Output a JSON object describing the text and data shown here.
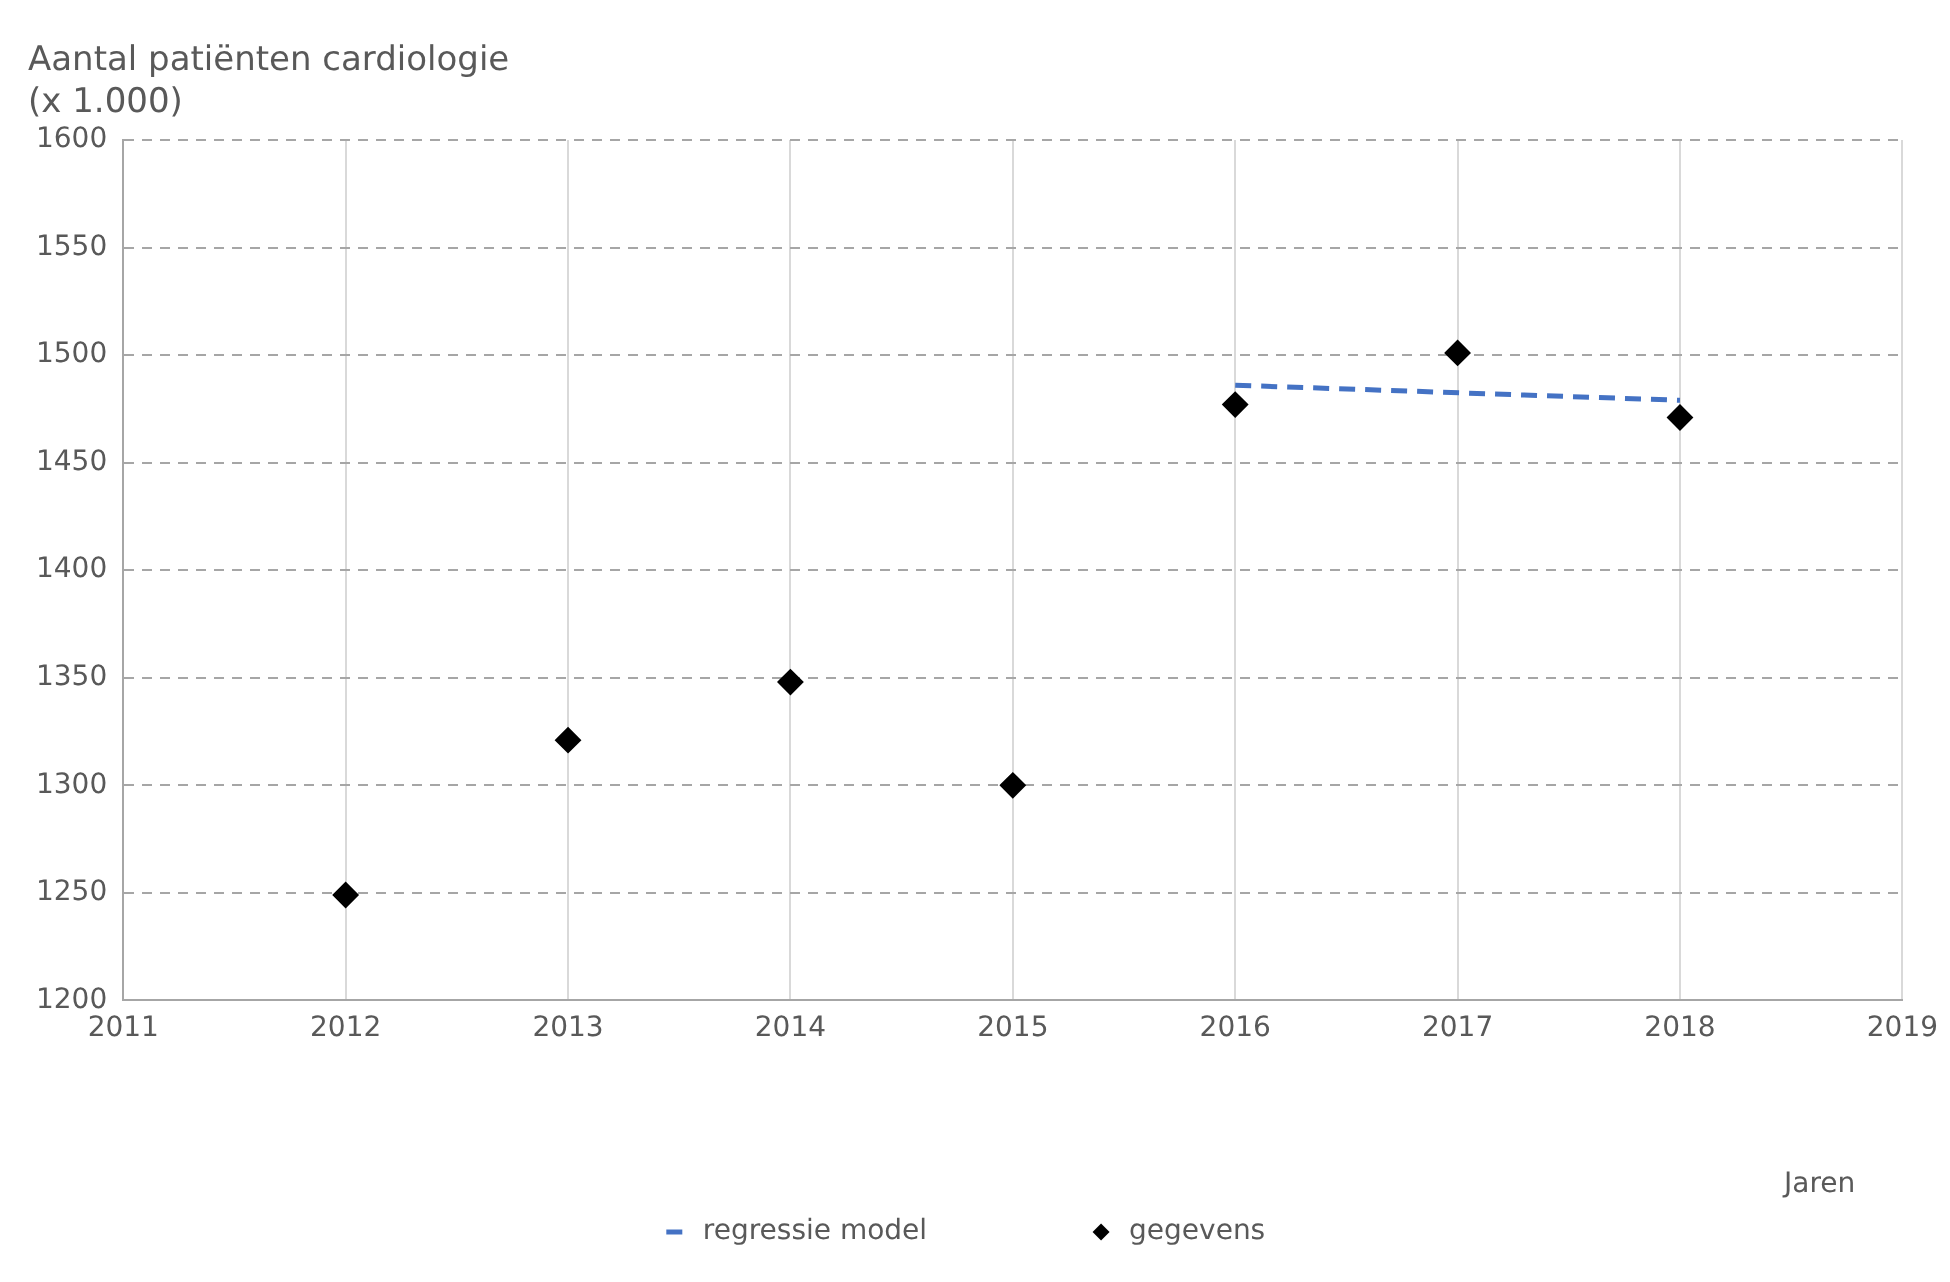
{
  "chart_data": {
    "type": "scatter",
    "ylabel": "Aantal patiënten cardiologie\n(x 1.000)",
    "xlabel": "Jaren",
    "series": [
      {
        "name": "regressie model",
        "type": "line",
        "line_style": "dashed",
        "marker": "none",
        "color": "#4472c4",
        "x": [
          2016,
          2018
        ],
        "values": [
          1486,
          1479
        ]
      },
      {
        "name": "gegevens",
        "type": "scatter",
        "marker": "diamond",
        "color": "#000000",
        "x": [
          2012,
          2013,
          2014,
          2015,
          2016,
          2017,
          2018
        ],
        "values": [
          1249,
          1321,
          1348,
          1300,
          1477,
          1501,
          1471
        ]
      }
    ],
    "xlim": [
      2011,
      2019
    ],
    "xticks": [
      2011,
      2012,
      2013,
      2014,
      2015,
      2016,
      2017,
      2018,
      2019
    ],
    "ylim": [
      1200,
      1600
    ],
    "yticks": [
      1200,
      1250,
      1300,
      1350,
      1400,
      1450,
      1500,
      1550,
      1600
    ],
    "grid": true,
    "legend": "bottom"
  }
}
